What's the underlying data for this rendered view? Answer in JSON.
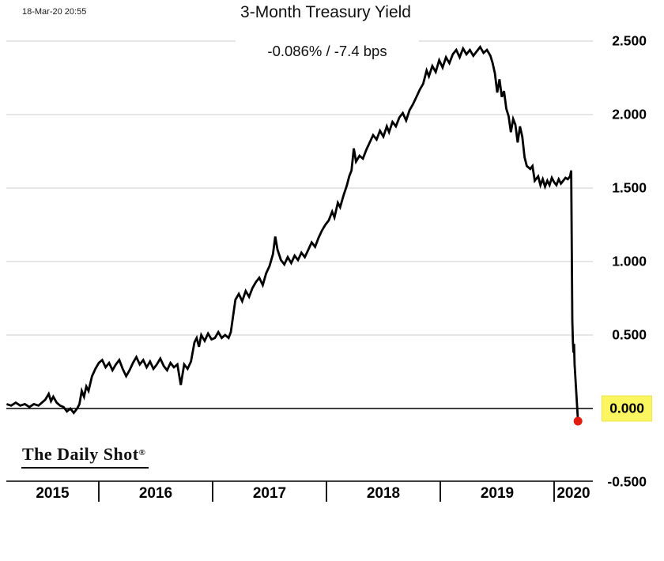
{
  "header": {
    "timestamp": "18-Mar-20 20:55",
    "title": "3-Month Treasury Yield",
    "subtitle": "-0.086%  /  -7.4 bps"
  },
  "footer": {
    "logo_text": "The Daily Shot",
    "registered_mark": "®"
  },
  "colors": {
    "line": "#000000",
    "end_dot": "#e51b10",
    "gridline": "#d6d6d6",
    "axis": "#000000",
    "highlight_bg": "#fbf55f"
  },
  "chart_data": {
    "type": "line",
    "title": "3-Month Treasury Yield",
    "subtitle_change": "-0.086%  /  -7.4 bps",
    "xlabel": "",
    "ylabel": "",
    "x_tick_labels": [
      "2015",
      "2016",
      "2017",
      "2018",
      "2019",
      "2020"
    ],
    "y_tick_labels": [
      "2.500",
      "2.000",
      "1.500",
      "1.000",
      "0.500",
      "0.000",
      "-0.500"
    ],
    "y_tick_values": [
      2.5,
      2.0,
      1.5,
      1.0,
      0.5,
      0.0,
      -0.5
    ],
    "highlighted_y_label": "0.000",
    "ylim": [
      -0.5,
      2.5
    ],
    "x_range_years": [
      2015.19,
      2020.21
    ],
    "grid": "horizontal-gray, zero-line-black",
    "legend_position": "none",
    "end_marker": {
      "x": 2020.21,
      "y": -0.086
    },
    "series": [
      {
        "name": "3-Month Treasury Yield (%)",
        "points": [
          [
            2015.19,
            0.03
          ],
          [
            2015.23,
            0.02
          ],
          [
            2015.27,
            0.04
          ],
          [
            2015.31,
            0.02
          ],
          [
            2015.35,
            0.03
          ],
          [
            2015.39,
            0.01
          ],
          [
            2015.43,
            0.03
          ],
          [
            2015.47,
            0.02
          ],
          [
            2015.5,
            0.04
          ],
          [
            2015.53,
            0.06
          ],
          [
            2015.56,
            0.1
          ],
          [
            2015.58,
            0.05
          ],
          [
            2015.6,
            0.08
          ],
          [
            2015.63,
            0.04
          ],
          [
            2015.66,
            0.02
          ],
          [
            2015.69,
            0.01
          ],
          [
            2015.72,
            -0.02
          ],
          [
            2015.75,
            0.0
          ],
          [
            2015.78,
            -0.03
          ],
          [
            2015.81,
            0.0
          ],
          [
            2015.83,
            0.03
          ],
          [
            2015.85,
            0.12
          ],
          [
            2015.87,
            0.08
          ],
          [
            2015.89,
            0.15
          ],
          [
            2015.91,
            0.12
          ],
          [
            2015.94,
            0.22
          ],
          [
            2015.97,
            0.27
          ],
          [
            2016.0,
            0.31
          ],
          [
            2016.03,
            0.33
          ],
          [
            2016.06,
            0.28
          ],
          [
            2016.09,
            0.31
          ],
          [
            2016.12,
            0.26
          ],
          [
            2016.15,
            0.3
          ],
          [
            2016.18,
            0.33
          ],
          [
            2016.21,
            0.27
          ],
          [
            2016.24,
            0.22
          ],
          [
            2016.27,
            0.26
          ],
          [
            2016.3,
            0.31
          ],
          [
            2016.33,
            0.35
          ],
          [
            2016.36,
            0.3
          ],
          [
            2016.39,
            0.33
          ],
          [
            2016.42,
            0.28
          ],
          [
            2016.45,
            0.32
          ],
          [
            2016.48,
            0.27
          ],
          [
            2016.51,
            0.3
          ],
          [
            2016.54,
            0.34
          ],
          [
            2016.57,
            0.29
          ],
          [
            2016.6,
            0.26
          ],
          [
            2016.63,
            0.31
          ],
          [
            2016.66,
            0.28
          ],
          [
            2016.69,
            0.3
          ],
          [
            2016.72,
            0.16
          ],
          [
            2016.75,
            0.3
          ],
          [
            2016.78,
            0.27
          ],
          [
            2016.81,
            0.32
          ],
          [
            2016.84,
            0.45
          ],
          [
            2016.86,
            0.48
          ],
          [
            2016.88,
            0.42
          ],
          [
            2016.9,
            0.5
          ],
          [
            2016.93,
            0.46
          ],
          [
            2016.96,
            0.51
          ],
          [
            2016.99,
            0.47
          ],
          [
            2017.02,
            0.48
          ],
          [
            2017.05,
            0.52
          ],
          [
            2017.08,
            0.48
          ],
          [
            2017.11,
            0.5
          ],
          [
            2017.14,
            0.48
          ],
          [
            2017.16,
            0.52
          ],
          [
            2017.18,
            0.63
          ],
          [
            2017.2,
            0.74
          ],
          [
            2017.23,
            0.78
          ],
          [
            2017.26,
            0.73
          ],
          [
            2017.29,
            0.8
          ],
          [
            2017.32,
            0.76
          ],
          [
            2017.35,
            0.82
          ],
          [
            2017.38,
            0.86
          ],
          [
            2017.41,
            0.89
          ],
          [
            2017.44,
            0.84
          ],
          [
            2017.47,
            0.92
          ],
          [
            2017.5,
            0.97
          ],
          [
            2017.53,
            1.05
          ],
          [
            2017.55,
            1.17
          ],
          [
            2017.57,
            1.08
          ],
          [
            2017.6,
            1.01
          ],
          [
            2017.63,
            0.98
          ],
          [
            2017.66,
            1.03
          ],
          [
            2017.69,
            0.99
          ],
          [
            2017.72,
            1.04
          ],
          [
            2017.75,
            1.01
          ],
          [
            2017.78,
            1.06
          ],
          [
            2017.81,
            1.03
          ],
          [
            2017.84,
            1.08
          ],
          [
            2017.87,
            1.13
          ],
          [
            2017.9,
            1.1
          ],
          [
            2017.93,
            1.16
          ],
          [
            2017.96,
            1.21
          ],
          [
            2017.99,
            1.25
          ],
          [
            2018.02,
            1.28
          ],
          [
            2018.05,
            1.34
          ],
          [
            2018.07,
            1.3
          ],
          [
            2018.1,
            1.4
          ],
          [
            2018.12,
            1.37
          ],
          [
            2018.15,
            1.45
          ],
          [
            2018.18,
            1.52
          ],
          [
            2018.2,
            1.58
          ],
          [
            2018.22,
            1.62
          ],
          [
            2018.24,
            1.77
          ],
          [
            2018.26,
            1.68
          ],
          [
            2018.29,
            1.72
          ],
          [
            2018.32,
            1.7
          ],
          [
            2018.35,
            1.76
          ],
          [
            2018.38,
            1.81
          ],
          [
            2018.41,
            1.86
          ],
          [
            2018.44,
            1.83
          ],
          [
            2018.47,
            1.89
          ],
          [
            2018.5,
            1.85
          ],
          [
            2018.53,
            1.92
          ],
          [
            2018.55,
            1.88
          ],
          [
            2018.58,
            1.95
          ],
          [
            2018.61,
            1.92
          ],
          [
            2018.64,
            1.98
          ],
          [
            2018.67,
            2.01
          ],
          [
            2018.7,
            1.96
          ],
          [
            2018.73,
            2.03
          ],
          [
            2018.76,
            2.07
          ],
          [
            2018.79,
            2.12
          ],
          [
            2018.82,
            2.17
          ],
          [
            2018.85,
            2.21
          ],
          [
            2018.88,
            2.3
          ],
          [
            2018.9,
            2.26
          ],
          [
            2018.93,
            2.33
          ],
          [
            2018.96,
            2.29
          ],
          [
            2018.99,
            2.37
          ],
          [
            2019.02,
            2.32
          ],
          [
            2019.05,
            2.39
          ],
          [
            2019.08,
            2.35
          ],
          [
            2019.11,
            2.41
          ],
          [
            2019.14,
            2.44
          ],
          [
            2019.17,
            2.39
          ],
          [
            2019.2,
            2.45
          ],
          [
            2019.23,
            2.41
          ],
          [
            2019.26,
            2.44
          ],
          [
            2019.29,
            2.4
          ],
          [
            2019.32,
            2.43
          ],
          [
            2019.35,
            2.46
          ],
          [
            2019.38,
            2.42
          ],
          [
            2019.41,
            2.44
          ],
          [
            2019.44,
            2.4
          ],
          [
            2019.46,
            2.35
          ],
          [
            2019.48,
            2.28
          ],
          [
            2019.5,
            2.15
          ],
          [
            2019.52,
            2.24
          ],
          [
            2019.54,
            2.12
          ],
          [
            2019.56,
            2.16
          ],
          [
            2019.58,
            2.04
          ],
          [
            2019.6,
            1.99
          ],
          [
            2019.62,
            1.88
          ],
          [
            2019.64,
            1.97
          ],
          [
            2019.66,
            1.93
          ],
          [
            2019.68,
            1.81
          ],
          [
            2019.7,
            1.92
          ],
          [
            2019.72,
            1.85
          ],
          [
            2019.74,
            1.71
          ],
          [
            2019.76,
            1.65
          ],
          [
            2019.79,
            1.63
          ],
          [
            2019.81,
            1.65
          ],
          [
            2019.83,
            1.55
          ],
          [
            2019.86,
            1.58
          ],
          [
            2019.88,
            1.52
          ],
          [
            2019.9,
            1.56
          ],
          [
            2019.92,
            1.51
          ],
          [
            2019.94,
            1.55
          ],
          [
            2019.96,
            1.52
          ],
          [
            2019.98,
            1.57
          ],
          [
            2020.0,
            1.54
          ],
          [
            2020.02,
            1.52
          ],
          [
            2020.04,
            1.56
          ],
          [
            2020.06,
            1.53
          ],
          [
            2020.08,
            1.55
          ],
          [
            2020.1,
            1.57
          ],
          [
            2020.12,
            1.56
          ],
          [
            2020.14,
            1.58
          ],
          [
            2020.15,
            1.62
          ],
          [
            2020.16,
            0.6
          ],
          [
            2020.165,
            0.45
          ],
          [
            2020.17,
            0.38
          ],
          [
            2020.175,
            0.44
          ],
          [
            2020.18,
            0.3
          ],
          [
            2020.21,
            -0.086
          ]
        ]
      }
    ]
  }
}
